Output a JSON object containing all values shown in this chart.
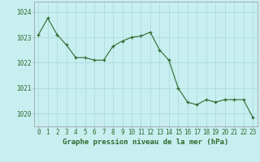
{
  "x": [
    0,
    1,
    2,
    3,
    4,
    5,
    6,
    7,
    8,
    9,
    10,
    11,
    12,
    13,
    14,
    15,
    16,
    17,
    18,
    19,
    20,
    21,
    22,
    23
  ],
  "y": [
    1023.1,
    1023.75,
    1023.1,
    1022.7,
    1022.2,
    1022.2,
    1022.1,
    1022.1,
    1022.65,
    1022.85,
    1023.0,
    1023.05,
    1023.2,
    1022.5,
    1022.1,
    1021.0,
    1020.45,
    1020.35,
    1020.55,
    1020.45,
    1020.55,
    1020.55,
    1020.55,
    1019.85
  ],
  "line_color": "#2d6a2d",
  "marker": "+",
  "marker_size": 3,
  "bg_color": "#c8eef0",
  "grid_color": "#a8d8da",
  "ylabel_ticks": [
    1020,
    1021,
    1022,
    1023,
    1024
  ],
  "xlabel": "Graphe pression niveau de la mer (hPa)",
  "xlabel_fontsize": 6.5,
  "tick_fontsize": 5.5,
  "ylim": [
    1019.5,
    1024.4
  ],
  "xlim": [
    -0.5,
    23.5
  ]
}
